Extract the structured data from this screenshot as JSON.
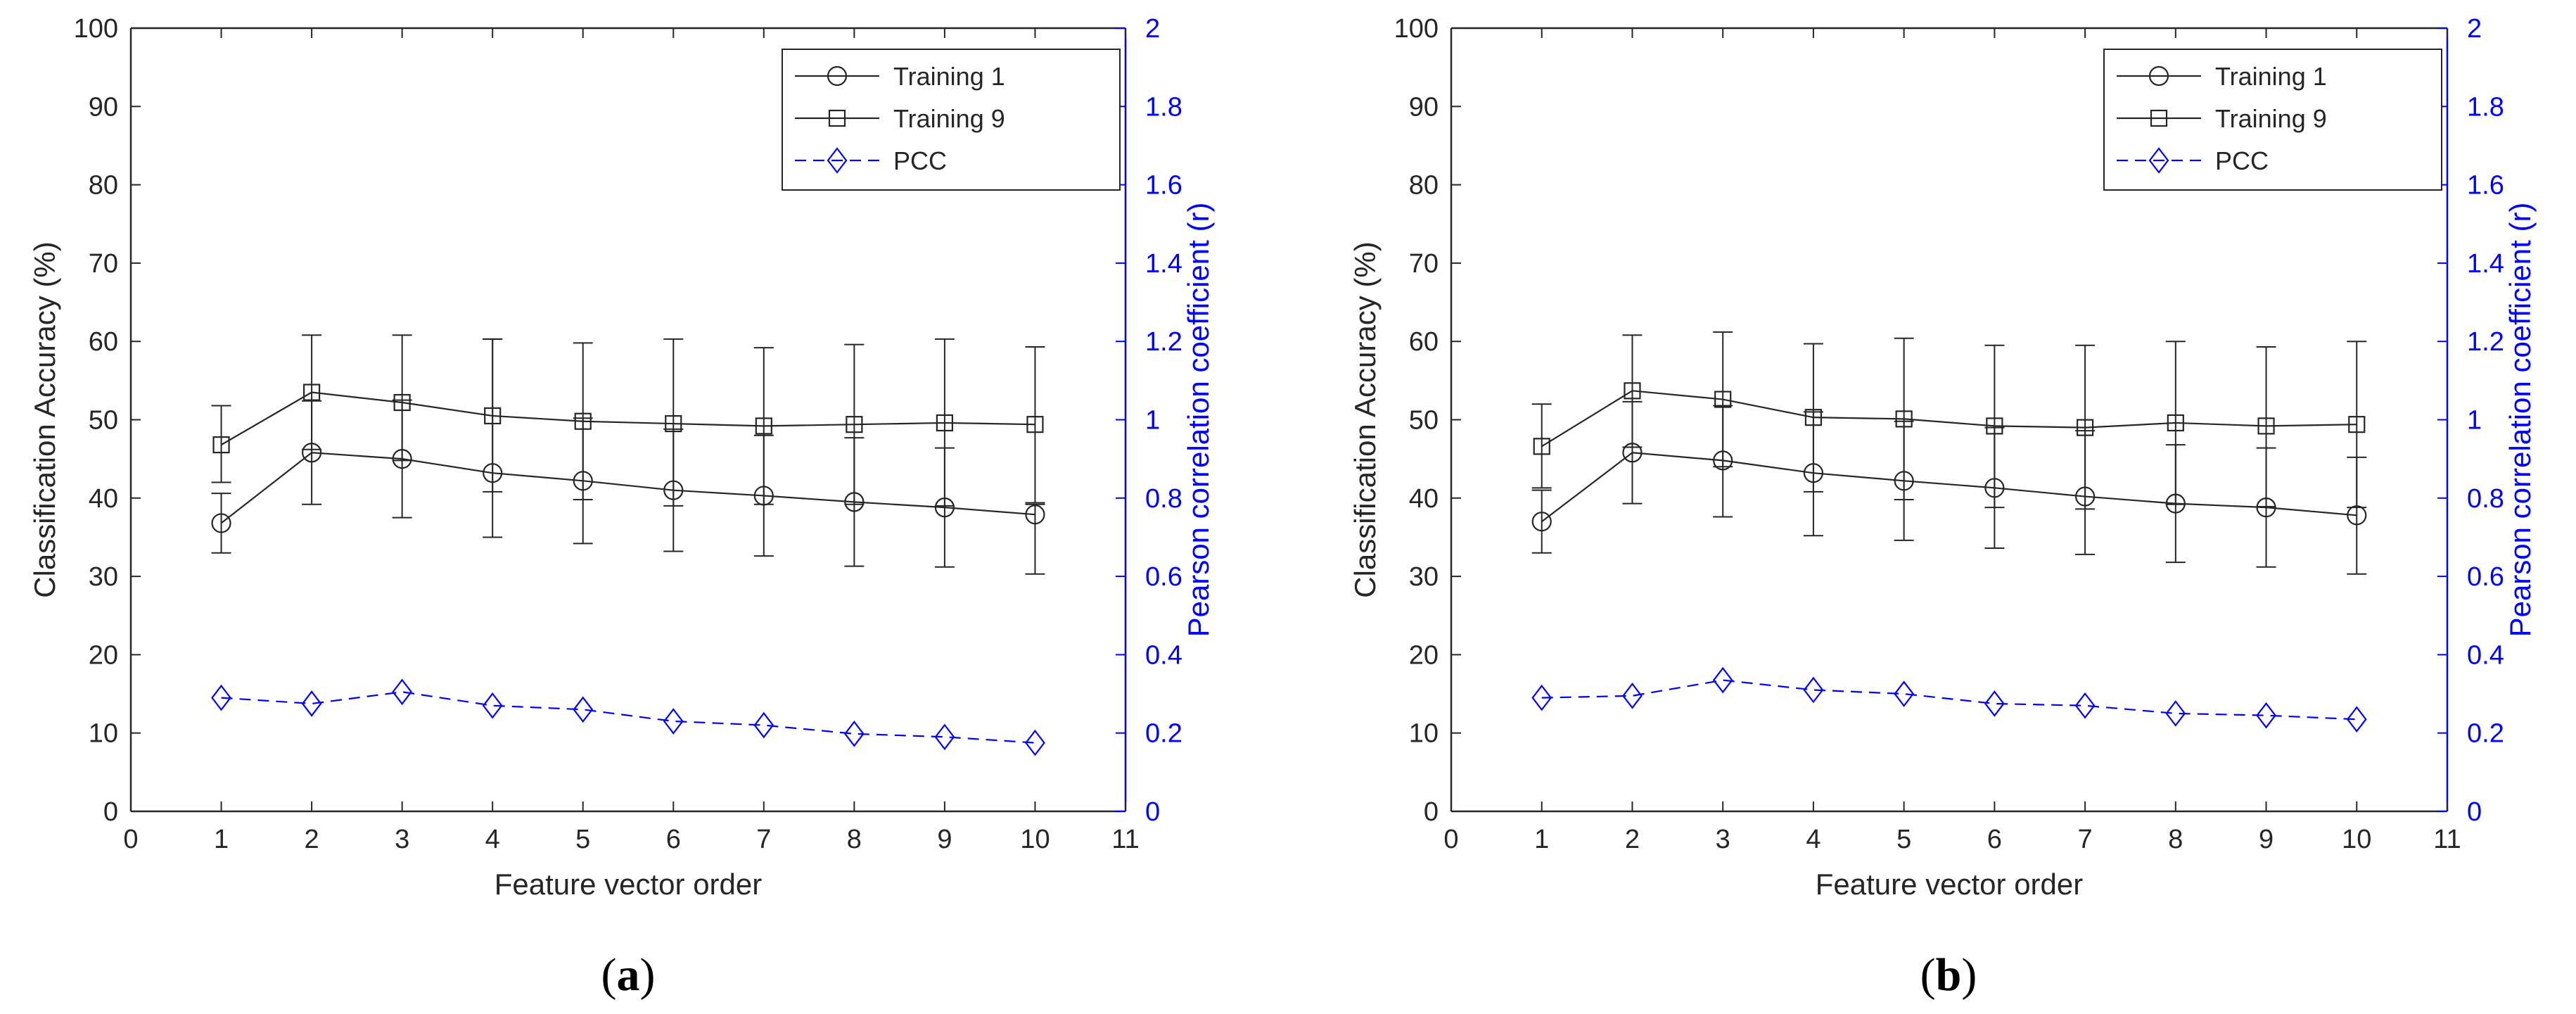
{
  "colors": {
    "training": "#262626",
    "pcc": "#0000ff",
    "right_axis": "#0000ff",
    "axis": "#262626"
  },
  "chart_data": [
    {
      "type": "line",
      "panel_label": {
        "open": "(",
        "letter": "a",
        "close": ")"
      },
      "xlabel": "Feature vector order",
      "ylabel": "Classification Accuracy (%)",
      "y2label": "Pearson correlation coefficient (r)",
      "xlim": [
        0,
        11
      ],
      "ylim": [
        0,
        100
      ],
      "y2lim": [
        0,
        2
      ],
      "x_ticks": [
        "0",
        "1",
        "2",
        "3",
        "4",
        "5",
        "6",
        "7",
        "8",
        "9",
        "10",
        "11"
      ],
      "y_ticks": [
        "0",
        "10",
        "20",
        "30",
        "40",
        "50",
        "60",
        "70",
        "80",
        "90",
        "100"
      ],
      "y2_ticks": [
        "0",
        "0.2",
        "0.4",
        "0.6",
        "0.8",
        "1",
        "1.2",
        "1.4",
        "1.6",
        "1.8",
        "2"
      ],
      "legend_position": "top-right",
      "series": [
        {
          "name": "Training 1",
          "marker": "circle",
          "axis": "left",
          "x": [
            1,
            2,
            3,
            4,
            5,
            6,
            7,
            8,
            9,
            10
          ],
          "values": [
            36.8,
            45.8,
            45.0,
            43.2,
            42.2,
            41.0,
            40.3,
            39.5,
            38.8,
            37.9
          ],
          "err_low": [
            33.0,
            39.2,
            37.5,
            35.0,
            34.2,
            33.2,
            32.6,
            31.3,
            31.2,
            30.3
          ],
          "err_high": [
            40.6,
            52.4,
            52.5,
            60.3,
            50.2,
            48.8,
            48.0,
            47.7,
            46.4,
            39.2
          ]
        },
        {
          "name": "Training 9",
          "marker": "square",
          "axis": "left",
          "x": [
            1,
            2,
            3,
            4,
            5,
            6,
            7,
            8,
            9,
            10
          ],
          "values": [
            46.8,
            53.5,
            52.2,
            50.5,
            49.8,
            49.5,
            49.2,
            49.4,
            49.6,
            49.4
          ],
          "err_low": [
            42.0,
            46.2,
            44.8,
            40.8,
            39.8,
            39.0,
            39.2,
            39.2,
            39.0,
            39.4
          ],
          "err_high": [
            51.8,
            60.8,
            60.8,
            60.3,
            59.8,
            60.3,
            59.2,
            59.6,
            60.3,
            59.3
          ]
        },
        {
          "name": "PCC",
          "marker": "diamond",
          "axis": "right",
          "dashed": true,
          "x": [
            1,
            2,
            3,
            4,
            5,
            6,
            7,
            8,
            9,
            10
          ],
          "values": [
            0.29,
            0.275,
            0.305,
            0.27,
            0.26,
            0.23,
            0.22,
            0.198,
            0.19,
            0.175
          ]
        }
      ]
    },
    {
      "type": "line",
      "panel_label": {
        "open": "(",
        "letter": "b",
        "close": ")"
      },
      "xlabel": "Feature vector order",
      "ylabel": "Classification Accuracy (%)",
      "y2label": "Pearson correlation coefficient (r)",
      "xlim": [
        0,
        11
      ],
      "ylim": [
        0,
        100
      ],
      "y2lim": [
        0,
        2
      ],
      "x_ticks": [
        "0",
        "1",
        "2",
        "3",
        "4",
        "5",
        "6",
        "7",
        "8",
        "9",
        "10",
        "11"
      ],
      "y_ticks": [
        "0",
        "10",
        "20",
        "30",
        "40",
        "50",
        "60",
        "70",
        "80",
        "90",
        "100"
      ],
      "y2_ticks": [
        "0",
        "0.2",
        "0.4",
        "0.6",
        "0.8",
        "1",
        "1.2",
        "1.4",
        "1.6",
        "1.8",
        "2"
      ],
      "legend_position": "top-right",
      "series": [
        {
          "name": "Training 1",
          "marker": "circle",
          "axis": "left",
          "x": [
            1,
            2,
            3,
            4,
            5,
            6,
            7,
            8,
            9,
            10
          ],
          "values": [
            37.0,
            45.8,
            44.8,
            43.2,
            42.2,
            41.3,
            40.2,
            39.3,
            38.8,
            37.8
          ],
          "err_low": [
            33.0,
            39.3,
            37.6,
            35.2,
            34.6,
            33.6,
            32.8,
            31.8,
            31.2,
            30.3
          ],
          "err_high": [
            41.0,
            52.3,
            51.8,
            51.0,
            49.8,
            49.0,
            48.6,
            46.8,
            46.4,
            45.2
          ]
        },
        {
          "name": "Training 9",
          "marker": "square",
          "axis": "left",
          "x": [
            1,
            2,
            3,
            4,
            5,
            6,
            7,
            8,
            9,
            10
          ],
          "values": [
            46.6,
            53.7,
            52.6,
            50.3,
            50.1,
            49.2,
            49.0,
            49.6,
            49.2,
            49.4
          ],
          "err_low": [
            41.3,
            46.5,
            44.0,
            40.8,
            39.8,
            38.8,
            38.6,
            39.2,
            38.9,
            38.8
          ],
          "err_high": [
            52.0,
            60.8,
            61.2,
            59.7,
            60.4,
            59.5,
            59.5,
            60.0,
            59.3,
            60.0
          ]
        },
        {
          "name": "PCC",
          "marker": "diamond",
          "axis": "right",
          "dashed": true,
          "x": [
            1,
            2,
            3,
            4,
            5,
            6,
            7,
            8,
            9,
            10
          ],
          "values": [
            0.29,
            0.295,
            0.335,
            0.31,
            0.3,
            0.275,
            0.27,
            0.25,
            0.245,
            0.235
          ]
        }
      ]
    }
  ]
}
